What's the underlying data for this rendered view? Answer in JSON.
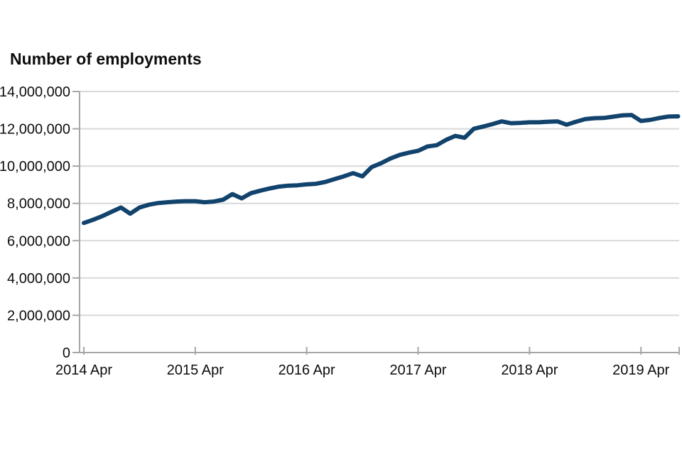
{
  "chart_data": {
    "type": "line",
    "title": "Number of employments",
    "ylabel": "",
    "xlabel": "",
    "ylim": [
      0,
      14000000
    ],
    "y_tick_step": 2000000,
    "y_tick_labels": [
      "0",
      "2,000,000",
      "4,000,000",
      "6,000,000",
      "8,000,000",
      "10,000,000",
      "12,000,000",
      "14,000,000"
    ],
    "x_tick_labels": [
      "2014 Apr",
      "2015 Apr",
      "2016 Apr",
      "2017 Apr",
      "2018 Apr",
      "2019 Apr"
    ],
    "grid": "horizontal",
    "legend": "none",
    "colors": {
      "line": "#12436d",
      "gridline": "#d9d9d9",
      "axis": "#a6a6a6",
      "text": "#0d0d0d",
      "background": "#ffffff"
    },
    "series": [
      {
        "name": "Number of employments",
        "x": [
          "2014-04",
          "2014-05",
          "2014-06",
          "2014-07",
          "2014-08",
          "2014-09",
          "2014-10",
          "2014-11",
          "2014-12",
          "2015-01",
          "2015-02",
          "2015-03",
          "2015-04",
          "2015-05",
          "2015-06",
          "2015-07",
          "2015-08",
          "2015-09",
          "2015-10",
          "2015-11",
          "2015-12",
          "2016-01",
          "2016-02",
          "2016-03",
          "2016-04",
          "2016-05",
          "2016-06",
          "2016-07",
          "2016-08",
          "2016-09",
          "2016-10",
          "2016-11",
          "2016-12",
          "2017-01",
          "2017-02",
          "2017-03",
          "2017-04",
          "2017-05",
          "2017-06",
          "2017-07",
          "2017-08",
          "2017-09",
          "2017-10",
          "2017-11",
          "2017-12",
          "2018-01",
          "2018-02",
          "2018-03",
          "2018-04",
          "2018-05",
          "2018-06",
          "2018-07",
          "2018-08",
          "2018-09",
          "2018-10",
          "2018-11",
          "2018-12",
          "2019-01",
          "2019-02",
          "2019-03",
          "2019-04",
          "2019-05",
          "2019-06",
          "2019-07",
          "2019-08"
        ],
        "values": [
          6950000,
          7120000,
          7320000,
          7550000,
          7780000,
          7450000,
          7780000,
          7930000,
          8020000,
          8060000,
          8100000,
          8120000,
          8120000,
          8060000,
          8100000,
          8200000,
          8500000,
          8270000,
          8550000,
          8680000,
          8800000,
          8900000,
          8950000,
          8970000,
          9020000,
          9050000,
          9150000,
          9300000,
          9450000,
          9620000,
          9450000,
          9950000,
          10150000,
          10400000,
          10600000,
          10720000,
          10820000,
          11050000,
          11120000,
          11400000,
          11620000,
          11520000,
          12000000,
          12120000,
          12250000,
          12400000,
          12300000,
          12320000,
          12350000,
          12350000,
          12380000,
          12400000,
          12220000,
          12380000,
          12520000,
          12570000,
          12580000,
          12650000,
          12720000,
          12740000,
          12420000,
          12480000,
          12580000,
          12660000,
          12670000
        ]
      }
    ]
  }
}
